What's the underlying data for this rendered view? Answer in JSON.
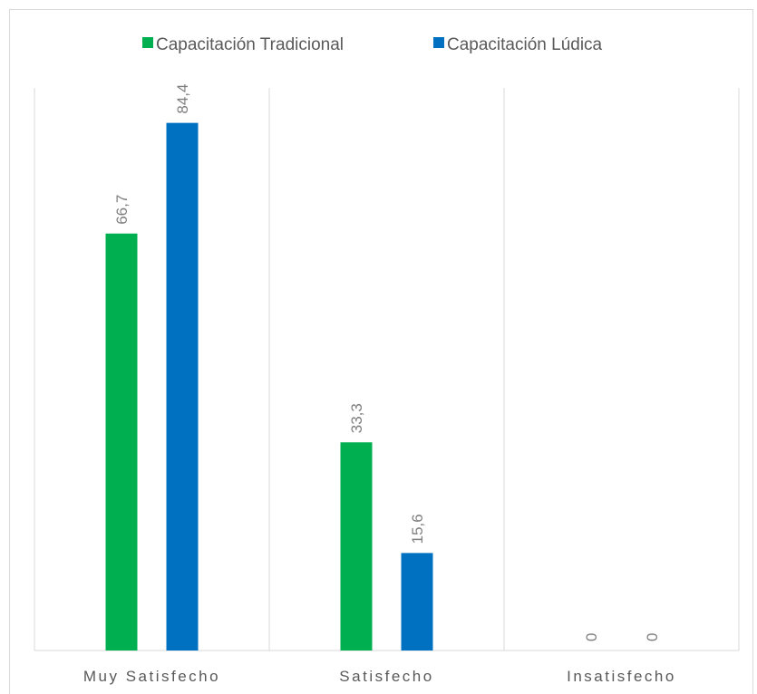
{
  "chart_data": {
    "type": "bar",
    "categories": [
      "Muy  Satisfecho",
      "Satisfecho",
      "Insatisfecho"
    ],
    "series": [
      {
        "name": "Capacitación Tradicional",
        "color": "#00b050",
        "values": [
          66.7,
          33.3,
          0
        ],
        "value_labels": [
          "66,7",
          "33,3",
          "0"
        ]
      },
      {
        "name": "Capacitación Lúdica",
        "color": "#0070c0",
        "values": [
          84.4,
          15.6,
          0
        ],
        "value_labels": [
          "84,4",
          "15,6",
          "0"
        ]
      }
    ],
    "ylim": [
      0,
      90
    ],
    "legend": "top"
  }
}
